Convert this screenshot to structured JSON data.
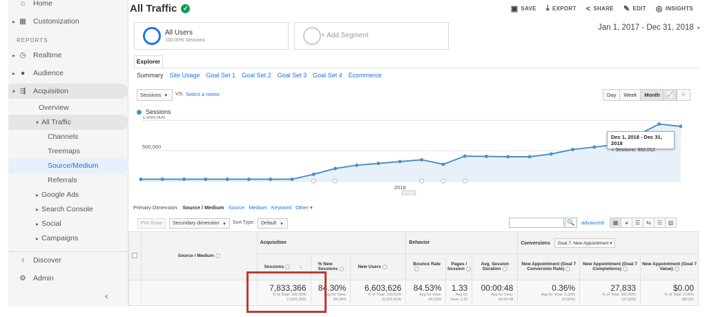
{
  "sidebar": {
    "section_reports": "REPORTS",
    "items": [
      {
        "label": "Home",
        "icon": "home-icon"
      },
      {
        "label": "Customization",
        "icon": "customization-icon"
      },
      {
        "label": "Realtime",
        "icon": "clock-icon"
      },
      {
        "label": "Audience",
        "icon": "person-icon"
      },
      {
        "label": "Acquisition",
        "icon": "acquisition-icon"
      },
      {
        "label": "Overview"
      },
      {
        "label": "All Traffic"
      },
      {
        "label": "Channels"
      },
      {
        "label": "Treemaps"
      },
      {
        "label": "Source/Medium"
      },
      {
        "label": "Referrals"
      },
      {
        "label": "Google Ads"
      },
      {
        "label": "Search Console"
      },
      {
        "label": "Social"
      },
      {
        "label": "Campaigns"
      },
      {
        "label": "Discover",
        "icon": "lightbulb-icon"
      },
      {
        "label": "Admin",
        "icon": "gear-icon"
      }
    ],
    "collapse_glyph": "‹"
  },
  "header": {
    "title": "All Traffic",
    "actions": {
      "save": "SAVE",
      "export": "EXPORT",
      "share": "SHARE",
      "edit": "EDIT",
      "insights": "INSIGHTS"
    }
  },
  "segments": {
    "seg1_title": "All Users",
    "seg1_sub": "100.00% Sessions",
    "add": "+ Add Segment"
  },
  "date_range": "Jan 1, 2017 - Dec 31, 2018",
  "explorer": {
    "tab": "Explorer",
    "subtabs": [
      "Summary",
      "Site Usage",
      "Goal Set 1",
      "Goal Set 2",
      "Goal Set 3",
      "Goal Set 4",
      "Ecommerce"
    ]
  },
  "chart_controls": {
    "metric": "Sessions",
    "vs": "VS.",
    "select_metric": "Select a metric",
    "granularity": [
      "Day",
      "Week",
      "Month"
    ],
    "legend": "Sessions"
  },
  "chart_data": {
    "type": "area",
    "series": [
      {
        "name": "Sessions",
        "values": [
          28000,
          28000,
          28000,
          28000,
          28000,
          28000,
          28000,
          28000,
          110000,
          205000,
          260000,
          290000,
          320000,
          350000,
          275000,
          410000,
          405000,
          400000,
          400000,
          445000,
          520000,
          560000,
          600000,
          760000,
          940000,
          902012
        ]
      }
    ],
    "ylabels": [
      "1,000,000",
      "500,000"
    ],
    "yticks": [
      1000000,
      500000
    ],
    "ylim": [
      0,
      1050000
    ],
    "x_tick": "2018",
    "color": "#4a90c8",
    "grid": true
  },
  "tooltip": {
    "range": "Dec 1, 2018 - Dec 31, 2018",
    "value": "Sessions: 902,012"
  },
  "primary_dimension": {
    "label": "Primary Dimension:",
    "current": "Source / Medium",
    "links": [
      "Source",
      "Medium",
      "Keyword",
      "Other"
    ]
  },
  "table_toolbar": {
    "plot_rows": "Plot Rows",
    "secondary": "Secondary dimension",
    "sort_type": "Sort Type:",
    "sort_default": "Default",
    "advanced": "advanced"
  },
  "table": {
    "dim_header": "Source / Medium",
    "group_acquisition": "Acquisition",
    "group_behavior": "Behavior",
    "group_conversions": "Conversions",
    "conversion_select": "Goal 7: New Appointment",
    "columns": [
      {
        "label": "Sessions",
        "big": "7,833,366",
        "small1": "% of Total: 100.00%",
        "small2": "(7,833,366)"
      },
      {
        "label": "% New Sessions",
        "big": "84.30%",
        "small1": "Avg for View:",
        "small2": "84.29%"
      },
      {
        "label": "New Users",
        "big": "6,603,626",
        "small1": "% of Total: 100.03%",
        "small2": "(6,601,824)"
      },
      {
        "label": "Bounce Rate",
        "big": "84.53%",
        "small1": "Avg for View:",
        "small2": "84.53%"
      },
      {
        "label": "Pages / Session",
        "big": "1.33",
        "small1": "Avg for",
        "small2": "View: 1.33"
      },
      {
        "label": "Avg. Session Duration",
        "big": "00:00:48",
        "small1": "Avg for View:",
        "small2": "00:00:48"
      },
      {
        "label": "New Appointment (Goal 7 Conversion Rate)",
        "big": "0.36%",
        "small1": "Avg for View: 0.36%",
        "small2": "(0.00%)"
      },
      {
        "label": "New Appointment (Goal 7 Completions)",
        "big": "27,833",
        "small1": "% of Total: 100.00%",
        "small2": "(27,833)"
      },
      {
        "label": "New Appointment (Goal 7 Value)",
        "big": "$0.00",
        "small1": "% of Total: 0.00%",
        "small2": "($0.00)"
      }
    ]
  }
}
